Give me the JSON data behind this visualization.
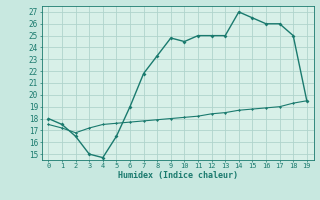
{
  "upper_x": [
    0,
    1,
    2,
    3,
    4,
    5,
    6,
    7,
    8,
    9,
    10,
    11,
    12,
    13,
    14,
    15,
    16,
    17,
    18,
    19
  ],
  "upper_y": [
    18.0,
    17.5,
    16.5,
    15.0,
    14.7,
    16.5,
    19.0,
    21.8,
    23.3,
    24.8,
    24.5,
    25.0,
    25.0,
    25.0,
    27.0,
    26.5,
    26.0,
    26.0,
    25.0,
    19.5
  ],
  "lower_x": [
    0,
    1,
    2,
    3,
    4,
    5,
    6,
    7,
    8,
    9,
    10,
    11,
    12,
    13,
    14,
    15,
    16,
    17,
    18,
    19
  ],
  "lower_y": [
    17.5,
    17.2,
    16.8,
    17.2,
    17.5,
    17.6,
    17.7,
    17.8,
    17.9,
    18.0,
    18.1,
    18.2,
    18.4,
    18.5,
    18.7,
    18.8,
    18.9,
    19.0,
    19.3,
    19.5
  ],
  "line_color": "#1a7a6e",
  "bg_color": "#c8e8e0",
  "grid_color": "#b0d4cc",
  "plot_bg": "#d8f0e8",
  "xlabel": "Humidex (Indice chaleur)",
  "ylim": [
    14.5,
    27.5
  ],
  "xlim": [
    -0.5,
    19.5
  ],
  "yticks": [
    15,
    16,
    17,
    18,
    19,
    20,
    21,
    22,
    23,
    24,
    25,
    26,
    27
  ],
  "xticks": [
    0,
    1,
    2,
    3,
    4,
    5,
    6,
    7,
    8,
    9,
    10,
    11,
    12,
    13,
    14,
    15,
    16,
    17,
    18,
    19
  ]
}
